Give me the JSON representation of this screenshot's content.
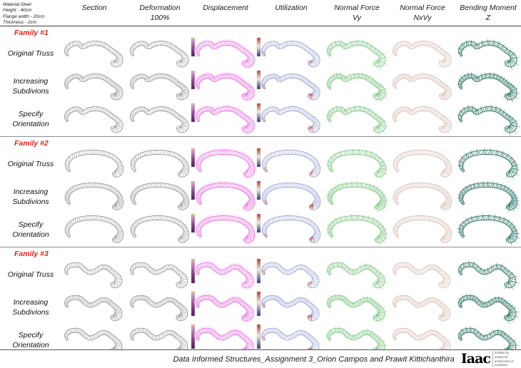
{
  "info": {
    "lines": [
      "Material:Steel",
      "Height - 40cm",
      "Flange width - 20cm",
      "Thickness - 2cm"
    ]
  },
  "columns": [
    {
      "line1": "Section",
      "line2": ""
    },
    {
      "line1": "Deformation",
      "line2": "100%"
    },
    {
      "line1": "Displacement",
      "line2": ""
    },
    {
      "line1": "Utilization",
      "line2": ""
    },
    {
      "line1": "Normal Force",
      "line2": "Vy"
    },
    {
      "line1": "Normal Force",
      "line2": "NxVy"
    },
    {
      "line1": "Bending Moment",
      "line2": "Z"
    }
  ],
  "families": [
    {
      "label": "Family #1",
      "rows": [
        "Original Truss",
        "Increasing Subdivions",
        "Specify Orientation"
      ]
    },
    {
      "label": "Family #2",
      "rows": [
        "Original Truss",
        "Increasing Subdivions",
        "Specify Orientation"
      ]
    },
    {
      "label": "Family #3",
      "rows": [
        "Original Truss",
        "Increasing Subdivions",
        "Specify Orientation"
      ]
    }
  ],
  "analysis_styles": {
    "family_label_color": "#e0241c",
    "neutral": "#9b9b9b",
    "displacement": "#e672df",
    "utilization": "#9fa6d2",
    "utilization_accent": "#c23b2e",
    "normal_force_vy": "#85c789",
    "normal_force_nxvy": "#d8c1b8",
    "bending_moment_z": "#2f7468"
  },
  "colorbars": {
    "displacement": [
      "#d8d060",
      "#d2a3ca",
      "#8e4a8c",
      "#45214e"
    ],
    "utilization": [
      "#bf3a2b",
      "#efe9e2",
      "#2c3a72"
    ]
  },
  "footer": {
    "caption": "Data Informed Structures_Assignment 3_Orion Campos and Prawit Kittichanthira",
    "logo_text": "Iaac",
    "logo_subtext": "Institute for advanced architecture of Catalonia"
  }
}
